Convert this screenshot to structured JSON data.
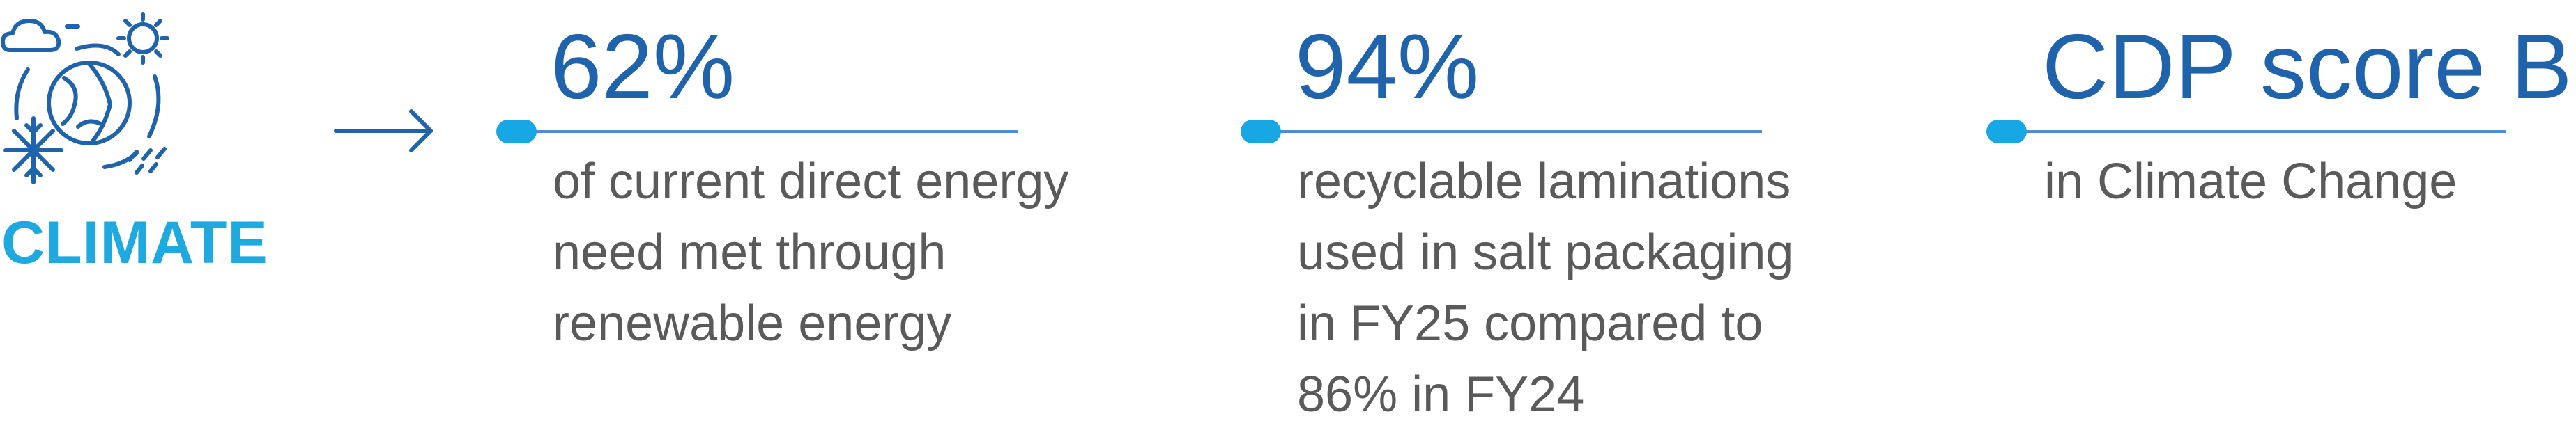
{
  "section": {
    "label": "CLIMATE",
    "icon": "climate-cycle-icon",
    "arrow_icon": "right-arrow-icon"
  },
  "metrics": [
    {
      "value": "62%",
      "lines": [
        "of current direct energy",
        "need met through",
        "renewable energy"
      ]
    },
    {
      "value": "94%",
      "lines": [
        "recyclable laminations",
        "used in salt packaging",
        "in FY25 compared to",
        "86% in FY24"
      ]
    },
    {
      "value": "CDP score B",
      "lines": [
        "in Climate Change"
      ]
    }
  ],
  "colors": {
    "label": "#1ea9e1",
    "value": "#1f63ad",
    "text": "#5a5a5a",
    "accent": "#17a7e4",
    "icon": "#1f63ad"
  }
}
